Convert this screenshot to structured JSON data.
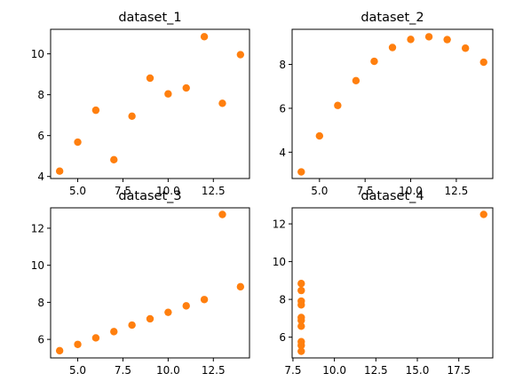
{
  "chart_data": [
    {
      "type": "scatter",
      "title": "dataset_1",
      "color": "#ff7f0e",
      "x": [
        10,
        8,
        13,
        9,
        11,
        14,
        6,
        4,
        12,
        7,
        5
      ],
      "y": [
        8.04,
        6.95,
        7.58,
        8.81,
        8.33,
        9.96,
        7.24,
        4.26,
        10.84,
        4.82,
        5.68
      ],
      "xlim": [
        3.5,
        14.5
      ],
      "ylim": [
        3.9,
        11.2
      ],
      "xticks": [
        5.0,
        7.5,
        10.0,
        12.5
      ],
      "xtick_labels": [
        "5.0",
        "7.5",
        "10.0",
        "12.5"
      ],
      "yticks": [
        4,
        6,
        8,
        10
      ],
      "ytick_labels": [
        "4",
        "6",
        "8",
        "10"
      ]
    },
    {
      "type": "scatter",
      "title": "dataset_2",
      "color": "#ff7f0e",
      "x": [
        10,
        8,
        13,
        9,
        11,
        14,
        6,
        4,
        12,
        7,
        5
      ],
      "y": [
        9.14,
        8.14,
        8.74,
        8.77,
        9.26,
        8.1,
        6.13,
        3.1,
        9.13,
        7.26,
        4.74
      ],
      "xlim": [
        3.5,
        14.5
      ],
      "ylim": [
        2.8,
        9.6
      ],
      "xticks": [
        5.0,
        7.5,
        10.0,
        12.5
      ],
      "xtick_labels": [
        "5.0",
        "7.5",
        "10.0",
        "12.5"
      ],
      "yticks": [
        4,
        6,
        8
      ],
      "ytick_labels": [
        "4",
        "6",
        "8"
      ]
    },
    {
      "type": "scatter",
      "title": "dataset_3",
      "color": "#ff7f0e",
      "x": [
        10,
        8,
        13,
        9,
        11,
        14,
        6,
        4,
        12,
        7,
        5
      ],
      "y": [
        7.46,
        6.77,
        12.74,
        7.11,
        7.81,
        8.84,
        6.08,
        5.39,
        8.15,
        6.42,
        5.73
      ],
      "xlim": [
        3.5,
        14.5
      ],
      "ylim": [
        5.0,
        13.1
      ],
      "xticks": [
        5.0,
        7.5,
        10.0,
        12.5
      ],
      "xtick_labels": [
        "5.0",
        "7.5",
        "10.0",
        "12.5"
      ],
      "yticks": [
        6,
        8,
        10,
        12
      ],
      "ytick_labels": [
        "6",
        "8",
        "10",
        "12"
      ]
    },
    {
      "type": "scatter",
      "title": "dataset_4",
      "color": "#ff7f0e",
      "x": [
        8,
        8,
        8,
        8,
        8,
        8,
        8,
        19,
        8,
        8,
        8
      ],
      "y": [
        6.58,
        5.76,
        7.71,
        8.84,
        8.47,
        7.04,
        5.25,
        12.5,
        5.56,
        7.91,
        6.89
      ],
      "xlim": [
        7.45,
        19.55
      ],
      "ylim": [
        4.9,
        12.85
      ],
      "xticks": [
        7.5,
        10.0,
        12.5,
        15.0,
        17.5
      ],
      "xtick_labels": [
        "7.5",
        "10.0",
        "12.5",
        "15.0",
        "17.5"
      ],
      "yticks": [
        6,
        8,
        10,
        12
      ],
      "ytick_labels": [
        "6",
        "8",
        "10",
        "12"
      ]
    }
  ]
}
